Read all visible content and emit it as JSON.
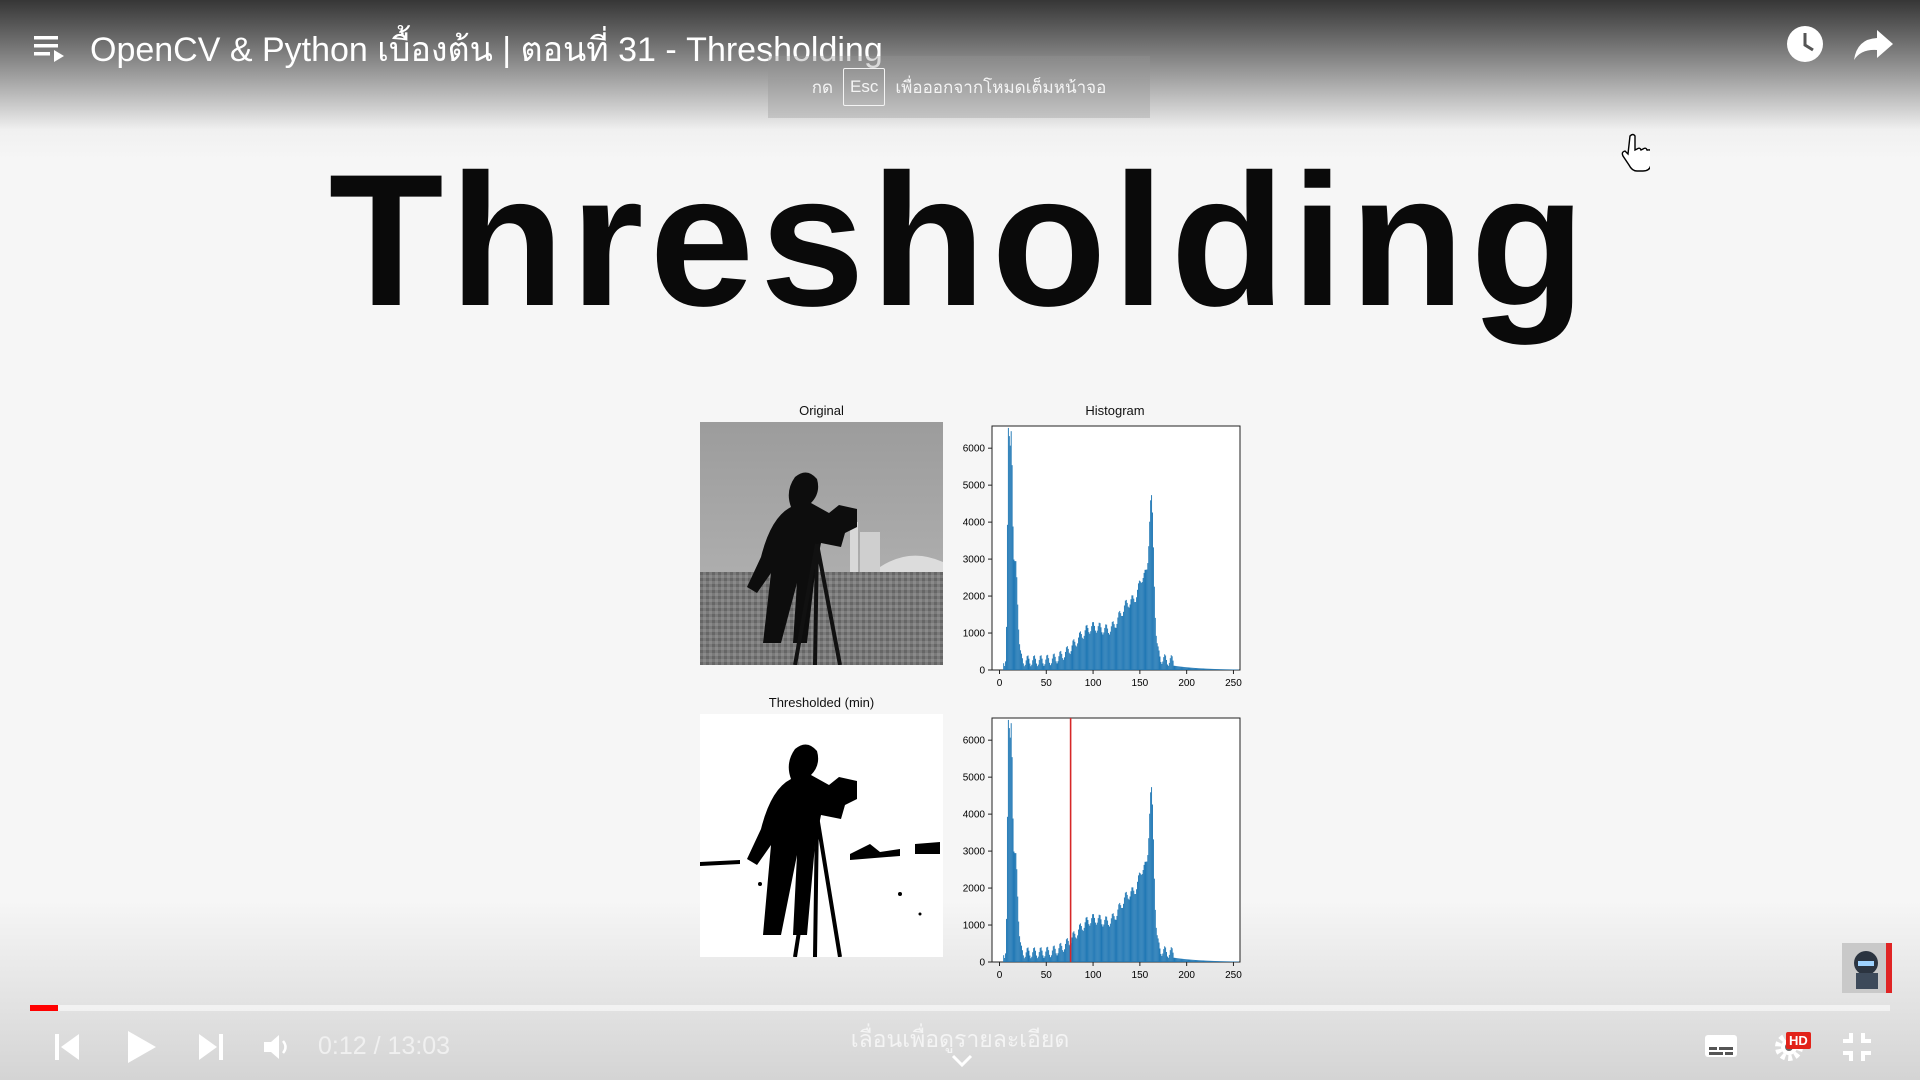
{
  "video": {
    "title": "OpenCV & Python เบื้องต้น | ตอนที่ 31 - Thresholding",
    "esc_hint_prefix": "กด",
    "esc_key": "Esc",
    "esc_hint_suffix": "เพื่อออกจากโหมดเต็มหน้าจอ"
  },
  "slide": {
    "heading": "Thresholding",
    "panels": {
      "original": "Original",
      "histogram": "Histogram",
      "thresholded": "Thresholded (min)"
    },
    "hist_y_ticks": [
      "0",
      "1000",
      "2000",
      "3000",
      "4000",
      "5000",
      "6000"
    ],
    "hist_x_ticks": [
      "0",
      "50",
      "100",
      "150",
      "200",
      "250"
    ],
    "threshold_value": 76
  },
  "controls": {
    "current_time": "0:12",
    "separator": " / ",
    "duration": "13:03",
    "progress_fraction": 0.015,
    "details_hint": "เลื่อนเพื่อดูรายละเอียด",
    "hd_badge": "HD",
    "accent": "#ff0000"
  },
  "colors": {
    "histogram": "#1f77b4",
    "threshold_line": "#d62728"
  }
}
